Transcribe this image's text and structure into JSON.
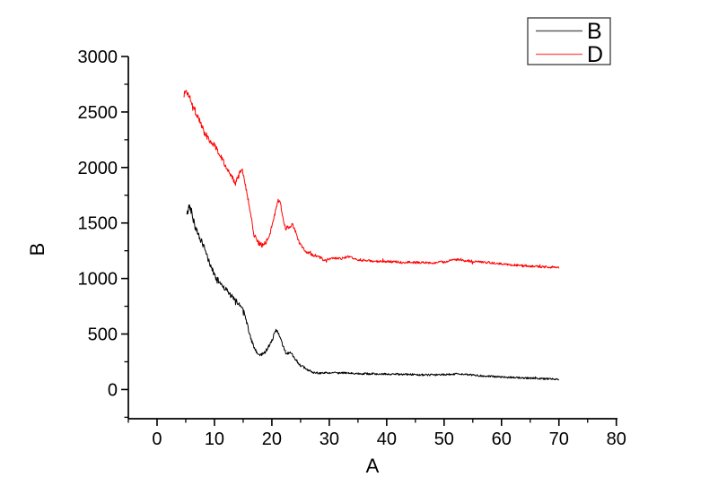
{
  "window": {
    "background": "#ffffff",
    "axis_color": "#000000"
  },
  "chart_data": {
    "type": "line",
    "title": "",
    "xlabel": "A",
    "ylabel": "B",
    "xlim": [
      -5.0,
      80.2
    ],
    "ylim": [
      -263,
      3000
    ],
    "grid": false,
    "x_ticks_major": [
      0,
      10,
      20,
      30,
      40,
      50,
      60,
      70,
      80
    ],
    "x_ticks_minor": [
      -5,
      5,
      15,
      25,
      35,
      45,
      55,
      65,
      75
    ],
    "y_ticks_major": [
      0,
      500,
      1000,
      1500,
      2000,
      2500,
      3000
    ],
    "y_ticks_minor": [
      -250,
      250,
      750,
      1250,
      1750,
      2250,
      2750
    ],
    "legend": {
      "position": "top-right",
      "entries": [
        {
          "label": "B",
          "color": "#000000"
        },
        {
          "label": "D",
          "color": "#ff0000"
        }
      ]
    },
    "series": [
      {
        "name": "B",
        "color": "#000000",
        "seed": 42,
        "anchors": [
          [
            5.2,
            1570
          ],
          [
            5.6,
            1655
          ],
          [
            6.0,
            1610
          ],
          [
            6.6,
            1470
          ],
          [
            7.8,
            1330
          ],
          [
            9.0,
            1160
          ],
          [
            10.2,
            1005
          ],
          [
            11.2,
            950
          ],
          [
            12.2,
            890
          ],
          [
            13.2,
            825
          ],
          [
            14.2,
            775
          ],
          [
            14.9,
            735
          ],
          [
            15.6,
            610
          ],
          [
            16.4,
            445
          ],
          [
            17.1,
            350
          ],
          [
            17.8,
            310
          ],
          [
            18.5,
            320
          ],
          [
            19.3,
            375
          ],
          [
            20.1,
            455
          ],
          [
            20.7,
            535
          ],
          [
            21.2,
            505
          ],
          [
            21.9,
            395
          ],
          [
            22.5,
            325
          ],
          [
            23.3,
            330
          ],
          [
            23.9,
            290
          ],
          [
            24.8,
            225
          ],
          [
            25.8,
            190
          ],
          [
            27.0,
            155
          ],
          [
            28.5,
            148
          ],
          [
            30.5,
            152
          ],
          [
            33.0,
            148
          ],
          [
            36.0,
            143
          ],
          [
            39.0,
            140
          ],
          [
            42.0,
            138
          ],
          [
            45.0,
            134
          ],
          [
            48.0,
            131
          ],
          [
            50.5,
            136
          ],
          [
            52.5,
            142
          ],
          [
            54.5,
            132
          ],
          [
            57.0,
            122
          ],
          [
            59.5,
            114
          ],
          [
            62.0,
            108
          ],
          [
            64.5,
            104
          ],
          [
            67.0,
            98
          ],
          [
            70.0,
            93
          ]
        ],
        "noise": [
          [
            5.2,
            34
          ],
          [
            8,
            28
          ],
          [
            14,
            22
          ],
          [
            20,
            16
          ],
          [
            24,
            12
          ],
          [
            28,
            9
          ],
          [
            70,
            8
          ]
        ]
      },
      {
        "name": "D",
        "color": "#ff0000",
        "seed": 1337,
        "anchors": [
          [
            4.7,
            2655
          ],
          [
            5.0,
            2690
          ],
          [
            5.4,
            2665
          ],
          [
            6.0,
            2605
          ],
          [
            6.5,
            2525
          ],
          [
            7.2,
            2450
          ],
          [
            8.3,
            2310
          ],
          [
            9.3,
            2240
          ],
          [
            10.4,
            2175
          ],
          [
            11.4,
            2070
          ],
          [
            12.3,
            1990
          ],
          [
            12.8,
            1935
          ],
          [
            13.6,
            1855
          ],
          [
            14.2,
            1920
          ],
          [
            14.8,
            1990
          ],
          [
            15.2,
            1900
          ],
          [
            15.6,
            1790
          ],
          [
            16.4,
            1555
          ],
          [
            16.9,
            1395
          ],
          [
            17.7,
            1320
          ],
          [
            18.3,
            1300
          ],
          [
            19.0,
            1330
          ],
          [
            19.6,
            1395
          ],
          [
            20.3,
            1530
          ],
          [
            21.1,
            1710
          ],
          [
            21.5,
            1670
          ],
          [
            22.0,
            1535
          ],
          [
            22.4,
            1450
          ],
          [
            23.0,
            1465
          ],
          [
            23.6,
            1490
          ],
          [
            24.0,
            1440
          ],
          [
            24.7,
            1330
          ],
          [
            25.8,
            1250
          ],
          [
            26.8,
            1215
          ],
          [
            27.9,
            1205
          ],
          [
            29.0,
            1168
          ],
          [
            30.5,
            1180
          ],
          [
            32.0,
            1180
          ],
          [
            33.3,
            1195
          ],
          [
            34.5,
            1175
          ],
          [
            36.5,
            1160
          ],
          [
            39.0,
            1152
          ],
          [
            42.0,
            1150
          ],
          [
            45.0,
            1145
          ],
          [
            48.0,
            1142
          ],
          [
            50.0,
            1150
          ],
          [
            52.0,
            1172
          ],
          [
            54.0,
            1160
          ],
          [
            58.0,
            1143
          ],
          [
            61.0,
            1128
          ],
          [
            64.0,
            1115
          ],
          [
            67.0,
            1106
          ],
          [
            70.0,
            1100
          ]
        ],
        "noise": [
          [
            4.7,
            36
          ],
          [
            8,
            30
          ],
          [
            14,
            25
          ],
          [
            20,
            18
          ],
          [
            25,
            15
          ],
          [
            30,
            12
          ],
          [
            70,
            10
          ]
        ]
      }
    ]
  }
}
